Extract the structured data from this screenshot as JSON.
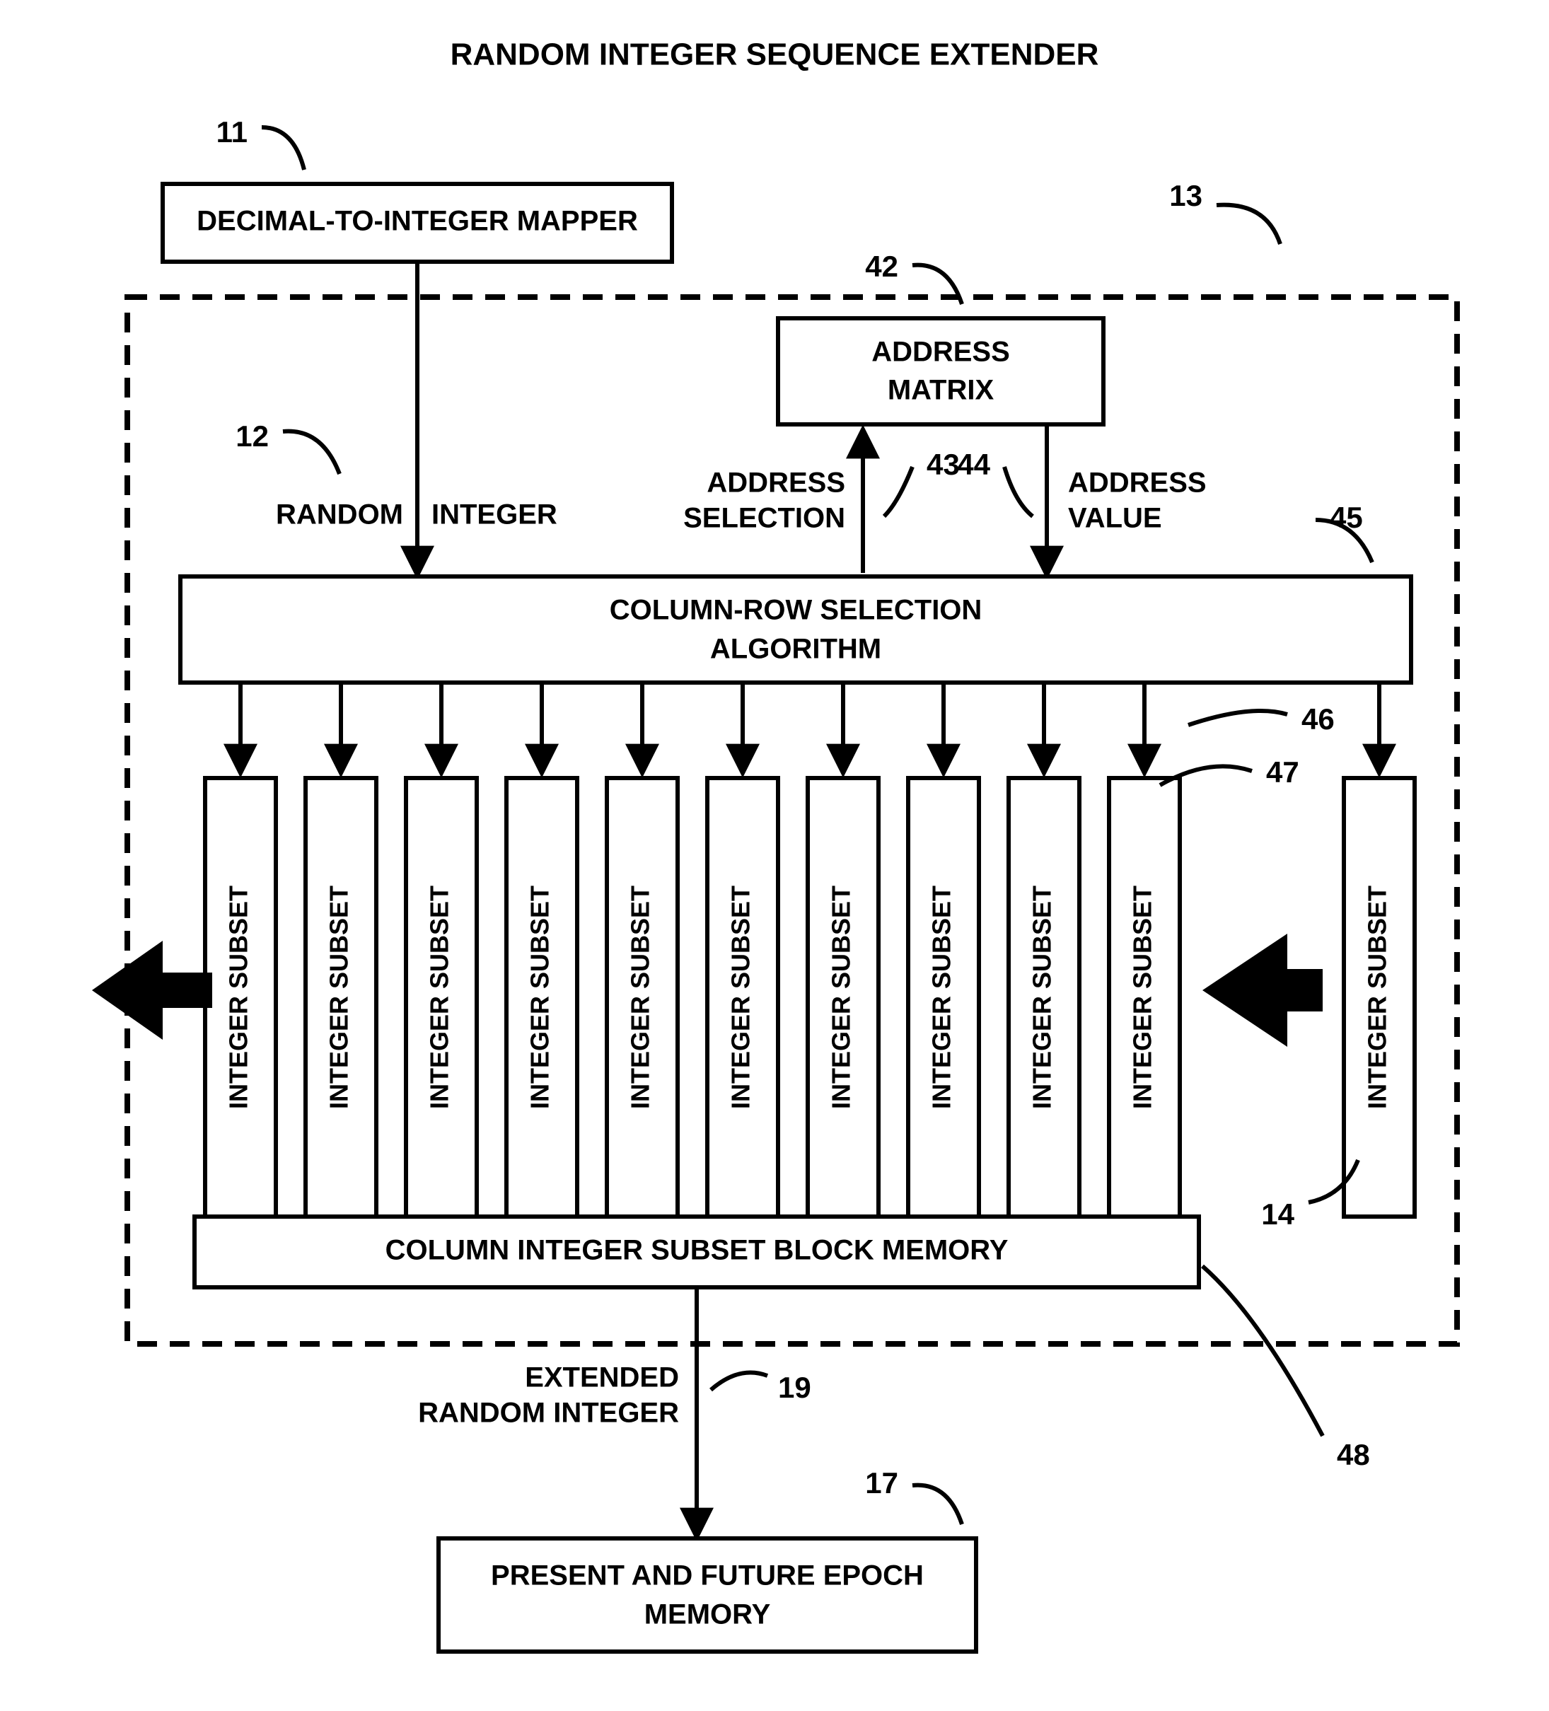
{
  "diagram": {
    "type": "flowchart",
    "title": "RANDOM INTEGER SEQUENCE EXTENDER",
    "title_fontsize": 44,
    "background_color": "#ffffff",
    "stroke_color": "#000000",
    "stroke_width": 6,
    "dash_pattern": "28 18",
    "font_family": "Arial",
    "label_fontsize": 40,
    "ref_fontsize": 42,
    "nodes": {
      "mapper": {
        "label": "DECIMAL-TO-INTEGER MAPPER",
        "ref": "11"
      },
      "address_matrix": {
        "label_l1": "ADDRESS",
        "label_l2": "MATRIX",
        "ref": "42"
      },
      "algorithm": {
        "label_l1": "COLUMN-ROW SELECTION",
        "label_l2": "ALGORITHM",
        "ref": "45"
      },
      "block_memory": {
        "label": "COLUMN INTEGER SUBSET BLOCK MEMORY",
        "ref": "48"
      },
      "epoch_memory": {
        "label_l1": "PRESENT AND FUTURE EPOCH",
        "label_l2": "MEMORY",
        "ref": "17"
      },
      "integer_subset": {
        "label": "INTEGER SUBSET",
        "count": 11,
        "ref_last_inner": "47",
        "ref_outer": "14"
      }
    },
    "edges": {
      "random_integer": {
        "label_l1": "RANDOM",
        "label_l2": "INTEGER",
        "ref": "12"
      },
      "address_selection": {
        "label_l1": "ADDRESS",
        "label_l2": "SELECTION",
        "ref": "43"
      },
      "address_value": {
        "label_l1": "ADDRESS",
        "label_l2": "VALUE",
        "ref": "44"
      },
      "downarrows_ref": "46",
      "extended": {
        "label_l1": "EXTENDED",
        "label_l2": "RANDOM INTEGER",
        "ref": "19"
      }
    },
    "outer_box_ref": "13"
  }
}
